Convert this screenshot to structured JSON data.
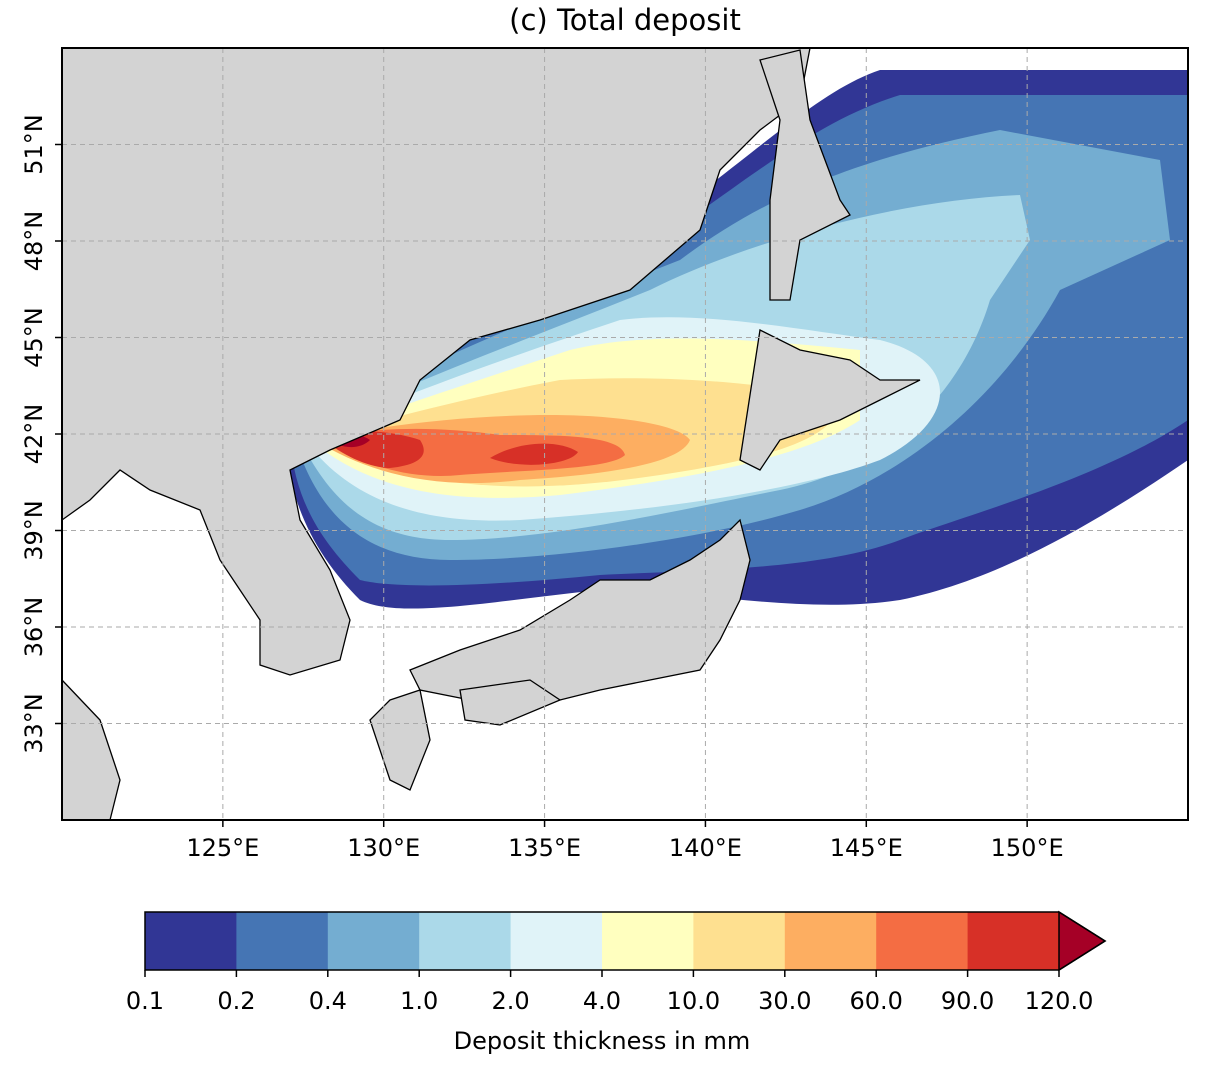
{
  "chart_data": {
    "type": "contour",
    "title": "(c) Total deposit",
    "xlim": [
      120,
      155
    ],
    "ylim": [
      30,
      54
    ],
    "xticks": [
      {
        "value": 125,
        "label": "125°E"
      },
      {
        "value": 130,
        "label": "130°E"
      },
      {
        "value": 135,
        "label": "135°E"
      },
      {
        "value": 140,
        "label": "140°E"
      },
      {
        "value": 145,
        "label": "145°E"
      },
      {
        "value": 150,
        "label": "150°E"
      }
    ],
    "yticks": [
      {
        "value": 33,
        "label": "33°N"
      },
      {
        "value": 36,
        "label": "36°N"
      },
      {
        "value": 39,
        "label": "39°N"
      },
      {
        "value": 42,
        "label": "42°N"
      },
      {
        "value": 45,
        "label": "45°N"
      },
      {
        "value": 48,
        "label": "48°N"
      },
      {
        "value": 51,
        "label": "51°N"
      }
    ],
    "grid": true,
    "land_color": "#d3d3d3",
    "colorbar": {
      "label": "Deposit thickness in mm",
      "levels": [
        0.1,
        0.2,
        0.4,
        {
          "value": 1,
          "label": "1.0"
        },
        {
          "value": 2,
          "label": "2.0"
        },
        {
          "value": 4,
          "label": "4.0"
        },
        {
          "value": 10,
          "label": "10.0"
        },
        {
          "value": 30,
          "label": "30.0"
        },
        {
          "value": 60,
          "label": "60.0"
        },
        {
          "value": 90,
          "label": "90.0"
        },
        {
          "value": 120,
          "label": "120.0"
        }
      ],
      "colors": [
        "#313695",
        "#4575b4",
        "#74add1",
        "#abd9e9",
        "#e0f3f8",
        "#ffffbf",
        "#fee090",
        "#fdae61",
        "#f46d43",
        "#d73027"
      ],
      "extend_color": "#a50026"
    }
  }
}
